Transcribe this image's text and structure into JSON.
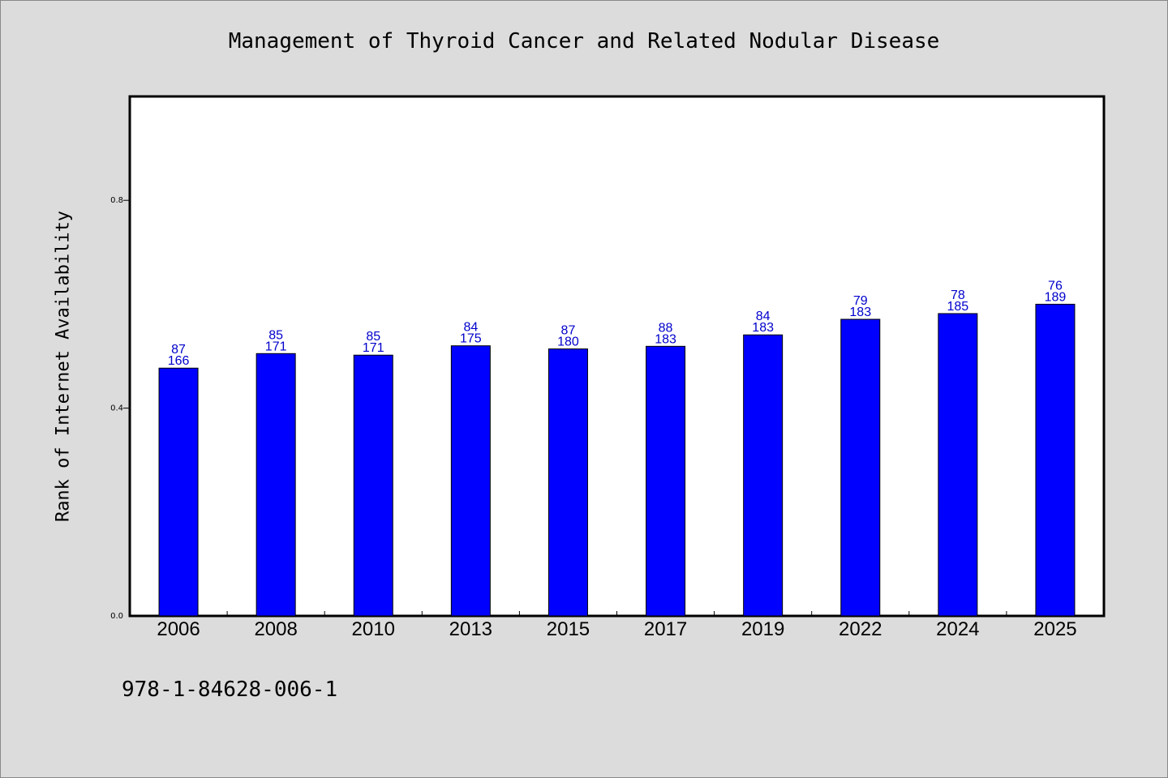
{
  "chart_data": {
    "type": "bar",
    "title": "Management of Thyroid Cancer and Related Nodular Disease",
    "xlabel": "",
    "ylabel": "Rank of Internet Availability",
    "footer": "978-1-84628-006-1",
    "categories": [
      "2006",
      "2008",
      "2010",
      "2013",
      "2015",
      "2017",
      "2019",
      "2022",
      "2024",
      "2025"
    ],
    "values": [
      0.477,
      0.505,
      0.502,
      0.52,
      0.514,
      0.519,
      0.541,
      0.571,
      0.582,
      0.6
    ],
    "top_labels": [
      "87",
      "85",
      "85",
      "84",
      "87",
      "88",
      "84",
      "79",
      "78",
      "76"
    ],
    "bottom_labels": [
      "166",
      "171",
      "171",
      "175",
      "180",
      "183",
      "183",
      "183",
      "185",
      "189"
    ],
    "yticks": [
      "0.0",
      "0.4",
      "0.8"
    ],
    "ylim": [
      0,
      1.0
    ],
    "grid": false,
    "colors": {
      "bar": "#0000ff",
      "label": "#0000cc",
      "background": "#dcdcdc",
      "plot": "#ffffff"
    }
  }
}
